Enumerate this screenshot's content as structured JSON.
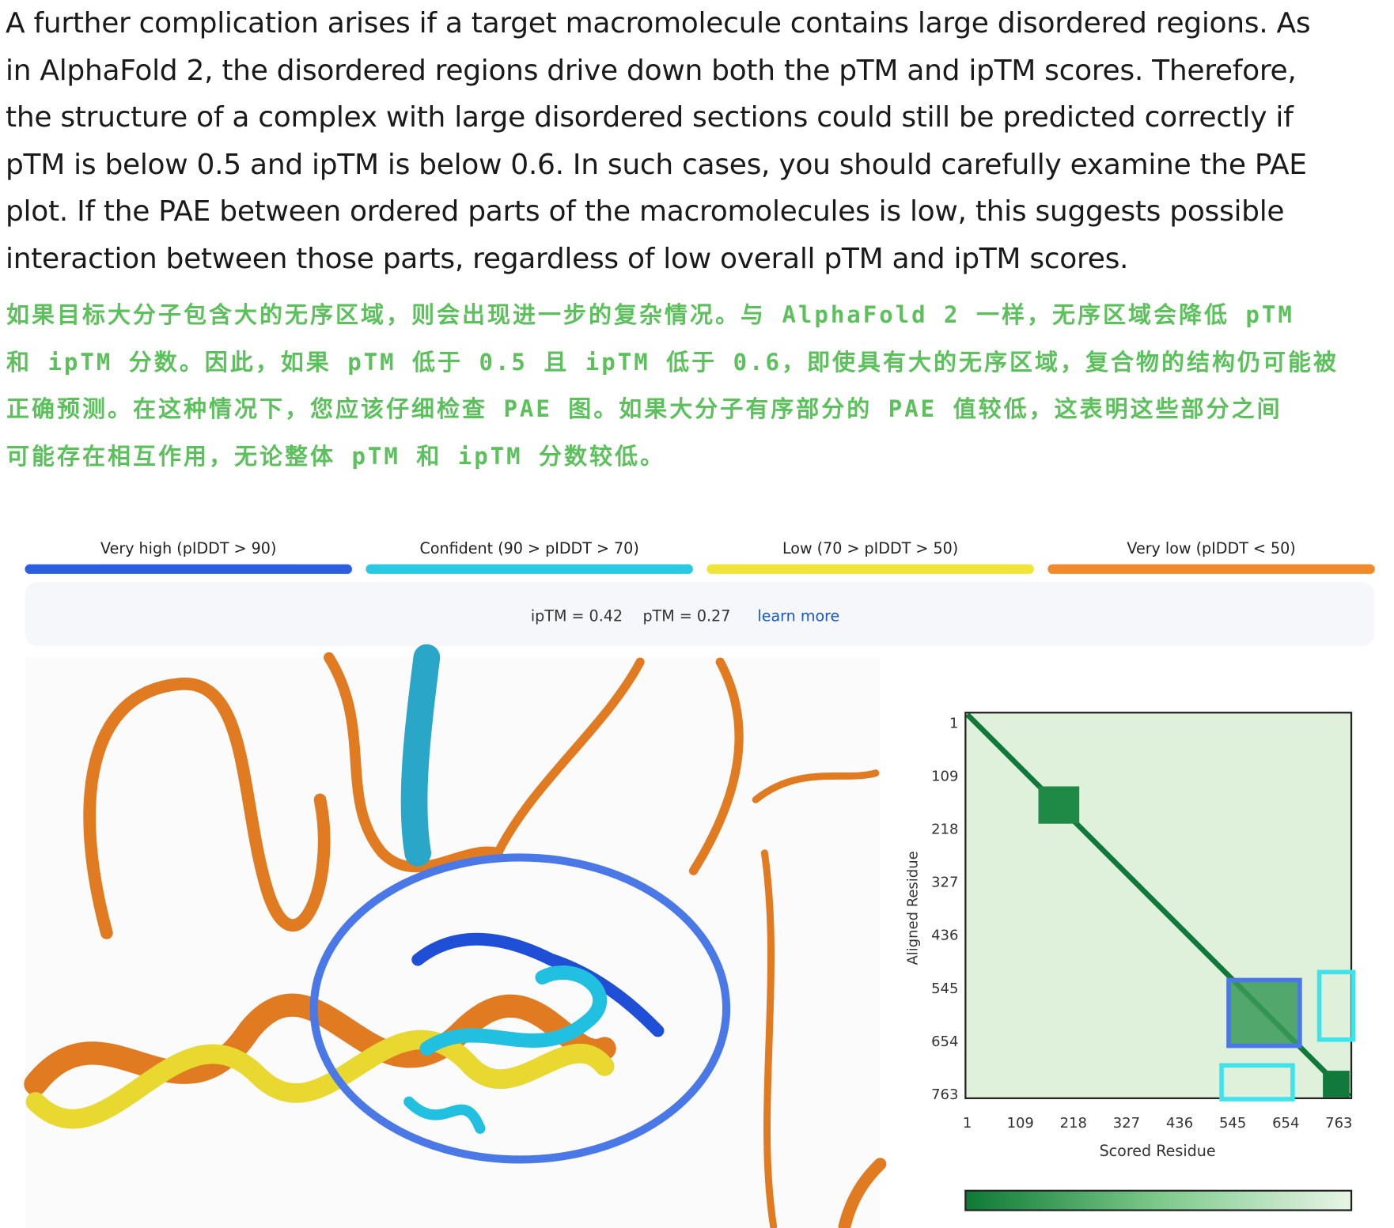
{
  "article": {
    "paragraph_en": [
      "A further complication arises if a target macromolecule contains large disordered regions. As",
      "in AlphaFold 2, the disordered regions drive down both the pTM and ipTM scores. Therefore,",
      "the structure of a complex with large disordered sections could still be predicted correctly if",
      "pTM is below 0.5 and ipTM is below 0.6. In such cases, you should carefully examine the PAE",
      "plot. If the PAE between ordered parts of the macromolecules is low, this suggests possible",
      "interaction between those parts, regardless of low overall pTM and ipTM scores."
    ],
    "paragraph_zh": [
      "如果目标大分子包含大的无序区域，则会出现进一步的复杂情况。与 AlphaFold 2 一样，无序区域会降低 pTM",
      "和 ipTM 分数。因此，如果 pTM 低于 0.5 且 ipTM 低于 0.6，即使具有大的无序区域，复合物的结构仍可能被",
      "正确预测。在这种情况下，您应该仔细检查 PAE 图。如果大分子有序部分的 PAE 值较低，这表明这些部分之间",
      "可能存在相互作用，无论整体 pTM 和 ipTM 分数较低。"
    ]
  },
  "figure": {
    "plddt_legend": [
      {
        "label": "Very high (pIDDT > 90)",
        "color": "#2b5fe0"
      },
      {
        "label": "Confident (90 > pIDDT > 70)",
        "color": "#2ac9e3"
      },
      {
        "label": "Low (70 > pIDDT > 50)",
        "color": "#f0e43a"
      },
      {
        "label": "Very low (pIDDT < 50)",
        "color": "#f08a2a"
      }
    ],
    "scores": {
      "iptm": "ipTM = 0.42",
      "ptm": "pTM = 0.27",
      "learn_more": "learn more"
    },
    "pae_plot": {
      "y_axis_label": "Aligned Residue",
      "x_axis_label": "Scored Residue",
      "ticks": [
        1,
        109,
        218,
        327,
        436,
        545,
        654,
        763
      ]
    }
  }
}
